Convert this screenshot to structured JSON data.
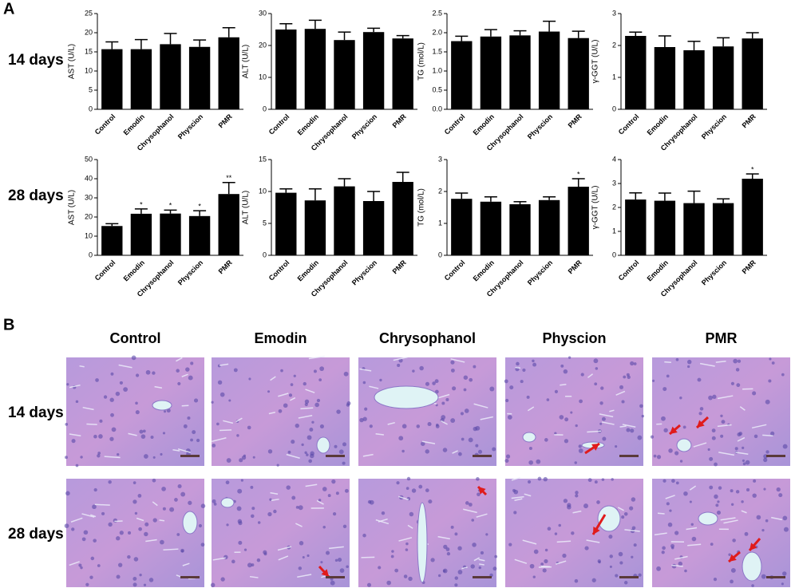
{
  "figure": {
    "panel_a": "A",
    "panel_b": "B",
    "row_labels": [
      "14 days",
      "28 days"
    ]
  },
  "histology": {
    "columns": [
      "Control",
      "Emodin",
      "Chrysophanol",
      "Physcion",
      "PMR"
    ],
    "rows": [
      "14 days",
      "28 days"
    ]
  },
  "chart_data": [
    {
      "type": "bar",
      "y_label": "AST (U/L)",
      "categories": [
        "Control",
        "Emodin",
        "Chrysophanol",
        "Physcion",
        "PMR"
      ],
      "values": [
        15.7,
        15.7,
        17,
        16.3,
        18.8
      ],
      "errors": [
        1.9,
        2.5,
        2.8,
        1.8,
        2.5
      ],
      "color": "#000000",
      "ylim": [
        0,
        25
      ],
      "yticks": [
        0,
        5,
        10,
        15,
        20,
        25
      ]
    },
    {
      "type": "bar",
      "y_label": "ALT (U/L)",
      "categories": [
        "Control",
        "Emodin",
        "Chrysophanol",
        "Physcion",
        "PMR"
      ],
      "values": [
        25,
        25.2,
        21.7,
        24.2,
        22.2
      ],
      "errors": [
        1.8,
        2.7,
        2.5,
        1.2,
        0.9
      ],
      "color": "#000000",
      "ylim": [
        0,
        30
      ],
      "yticks": [
        0,
        10,
        20,
        30
      ]
    },
    {
      "type": "bar",
      "y_label": "TG (mol/L)",
      "categories": [
        "Control",
        "Emodin",
        "Chrysophanol",
        "Physcion",
        "PMR"
      ],
      "values": [
        1.78,
        1.9,
        1.93,
        2.03,
        1.86
      ],
      "errors": [
        0.13,
        0.18,
        0.12,
        0.27,
        0.18
      ],
      "color": "#000000",
      "ylim": [
        0,
        2.5
      ],
      "yticks": [
        {
          "value": 0,
          "label": "0.0"
        },
        0.5,
        {
          "value": 1,
          "label": "1.0"
        },
        1.5,
        {
          "value": 2,
          "label": "2.0"
        },
        2.5
      ]
    },
    {
      "type": "bar",
      "y_label": "γ-GGT (U/L)",
      "categories": [
        "Control",
        "Emodin",
        "Chrysophanol",
        "Physcion",
        "PMR"
      ],
      "values": [
        2.3,
        1.95,
        1.85,
        1.97,
        2.22
      ],
      "errors": [
        0.12,
        0.35,
        0.28,
        0.27,
        0.18
      ],
      "color": "#000000",
      "ylim": [
        0,
        3
      ],
      "yticks": [
        0,
        1,
        2,
        3
      ]
    },
    {
      "type": "bar",
      "y_label": "AST (U/L)",
      "categories": [
        "Control",
        "Emodin",
        "Chrysophanol",
        "Physcion",
        "PMR"
      ],
      "values": [
        15.3,
        21.7,
        21.8,
        20.5,
        32
      ],
      "errors": [
        1.2,
        2.5,
        1.8,
        2.8,
        6
      ],
      "significance": [
        null,
        "*",
        "*",
        "*",
        "**"
      ],
      "color": "#000000",
      "ylim": [
        0,
        50
      ],
      "yticks": [
        0,
        10,
        20,
        30,
        40,
        50
      ]
    },
    {
      "type": "bar",
      "y_label": "ALT (U/L)",
      "categories": [
        "Control",
        "Emodin",
        "Chrysophanol",
        "Physcion",
        "PMR"
      ],
      "values": [
        9.8,
        8.6,
        10.8,
        8.5,
        11.5
      ],
      "errors": [
        0.6,
        1.8,
        1.2,
        1.5,
        1.5
      ],
      "color": "#000000",
      "ylim": [
        0,
        15
      ],
      "yticks": [
        0,
        5,
        10,
        15
      ]
    },
    {
      "type": "bar",
      "y_label": "TG (mol/L)",
      "categories": [
        "Control",
        "Emodin",
        "Chrysophanol",
        "Physcion",
        "PMR"
      ],
      "values": [
        1.77,
        1.68,
        1.6,
        1.73,
        2.15
      ],
      "errors": [
        0.18,
        0.15,
        0.08,
        0.1,
        0.25
      ],
      "significance": [
        null,
        null,
        null,
        null,
        "*"
      ],
      "color": "#000000",
      "ylim": [
        0,
        3
      ],
      "yticks": [
        0,
        1,
        2,
        3
      ]
    },
    {
      "type": "bar",
      "y_label": "γ-GGT (U/L)",
      "categories": [
        "Control",
        "Emodin",
        "Chrysophanol",
        "Physcion",
        "PMR"
      ],
      "values": [
        2.33,
        2.28,
        2.18,
        2.18,
        3.2
      ],
      "errors": [
        0.28,
        0.32,
        0.5,
        0.18,
        0.2
      ],
      "significance": [
        null,
        null,
        null,
        null,
        "*"
      ],
      "color": "#000000",
      "ylim": [
        0,
        4
      ],
      "yticks": [
        0,
        1,
        2,
        3,
        4
      ]
    }
  ]
}
